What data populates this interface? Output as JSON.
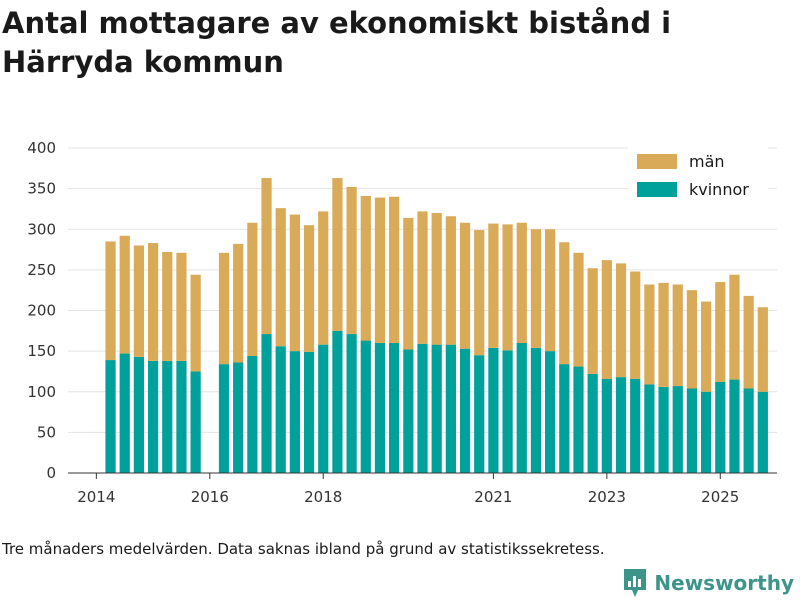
{
  "title": "Antal mottagare av ekonomiskt bistånd i Härryda kommun",
  "footnote": "Tre månaders medelvärden. Data saknas ibland på grund av statistikssekretess.",
  "brand": {
    "name": "Newsworthy",
    "icon": "bar-chart-logo-icon",
    "color": "#3d9489"
  },
  "chart_data": {
    "type": "bar",
    "stacked": true,
    "title": "Antal mottagare av ekonomiskt bistånd i Härryda kommun",
    "xlabel": "",
    "ylabel": "",
    "ylim": [
      0,
      400
    ],
    "y_ticks": [
      0,
      50,
      100,
      150,
      200,
      250,
      300,
      350,
      400
    ],
    "x_tick_labels": [
      "2014",
      "2016",
      "2018",
      "2021",
      "2023",
      "2025"
    ],
    "grid": true,
    "legend_position": "top-right",
    "categories": [
      "2014-Q2",
      "2014-Q3",
      "2014-Q4",
      "2015-Q1",
      "2015-Q2",
      "2015-Q3",
      "2015-Q4",
      "2016-Q1",
      "2016-Q2",
      "2016-Q3",
      "2016-Q4",
      "2017-Q1",
      "2017-Q2",
      "2017-Q3",
      "2017-Q4",
      "2018-Q1",
      "2018-Q2",
      "2018-Q3",
      "2018-Q4",
      "2019-Q1",
      "2019-Q2",
      "2019-Q3",
      "2019-Q4",
      "2020-Q1",
      "2020-Q2",
      "2020-Q3",
      "2020-Q4",
      "2021-Q1",
      "2021-Q2",
      "2021-Q3",
      "2021-Q4",
      "2022-Q1",
      "2022-Q2",
      "2022-Q3",
      "2022-Q4",
      "2023-Q1",
      "2023-Q2",
      "2023-Q3",
      "2023-Q4",
      "2024-Q1",
      "2024-Q2",
      "2024-Q3",
      "2024-Q4",
      "2025-Q1",
      "2025-Q2",
      "2025-Q3"
    ],
    "x_index": [
      0,
      1,
      2,
      3,
      4,
      5,
      6,
      8,
      9,
      10,
      11,
      12,
      13,
      14,
      15,
      16,
      17,
      18,
      19,
      20,
      21,
      22,
      23,
      24,
      25,
      26,
      27,
      28,
      29,
      30,
      31,
      32,
      33,
      34,
      35,
      36,
      37,
      38,
      39,
      40,
      41,
      42,
      43,
      44,
      45,
      46
    ],
    "x_index_range": [
      -3,
      47
    ],
    "x_tick_index": [
      -1,
      7,
      15,
      27,
      35,
      43
    ],
    "series": [
      {
        "name": "kvinnor",
        "color": "#00a19a",
        "values": [
          139,
          147,
          143,
          138,
          138,
          138,
          125,
          134,
          136,
          144,
          171,
          156,
          150,
          149,
          158,
          175,
          171,
          163,
          160,
          160,
          152,
          159,
          158,
          158,
          153,
          145,
          154,
          151,
          160,
          154,
          150,
          134,
          131,
          122,
          116,
          118,
          116,
          109,
          106,
          107,
          104,
          100,
          112,
          115,
          104,
          100
        ]
      },
      {
        "name": "män",
        "color": "#d9aa57",
        "values": [
          146,
          145,
          137,
          145,
          134,
          133,
          119,
          137,
          146,
          164,
          192,
          170,
          168,
          156,
          164,
          188,
          181,
          178,
          179,
          180,
          162,
          163,
          162,
          158,
          155,
          154,
          153,
          155,
          148,
          146,
          150,
          150,
          140,
          130,
          146,
          140,
          132,
          123,
          128,
          125,
          121,
          111,
          123,
          129,
          114,
          104
        ]
      }
    ]
  }
}
